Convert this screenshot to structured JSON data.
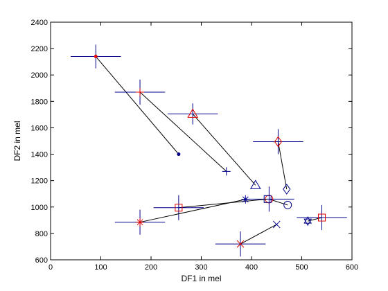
{
  "chart_data": {
    "type": "scatter",
    "title": "",
    "xlabel": "DF1 in mel",
    "ylabel": "DF2 in mel",
    "xlim": [
      0,
      600
    ],
    "ylim": [
      600,
      2400
    ],
    "xticks": [
      0,
      100,
      200,
      300,
      400,
      500,
      600
    ],
    "yticks": [
      600,
      800,
      1000,
      1200,
      1400,
      1600,
      1800,
      2000,
      2200,
      2400
    ],
    "grid": false,
    "legend": "none",
    "colors": {
      "line": "#000000",
      "errorbar": "#00008b",
      "start_marker": "#e00000",
      "end_marker": "#00008b"
    },
    "vectors": [
      {
        "start": {
          "x": 90,
          "y": 2140
        },
        "end": {
          "x": 255,
          "y": 1400
        },
        "start_marker": "dot",
        "end_marker": "dot",
        "err_x": 50,
        "err_y": 90
      },
      {
        "start": {
          "x": 178,
          "y": 1870
        },
        "end": {
          "x": 350,
          "y": 1270
        },
        "start_marker": "plus",
        "end_marker": "plus",
        "err_x": 50,
        "err_y": 95
      },
      {
        "start": {
          "x": 283,
          "y": 1705
        },
        "end": {
          "x": 408,
          "y": 1165
        },
        "start_marker": "triangle",
        "end_marker": "triangle",
        "err_x": 50,
        "err_y": 80
      },
      {
        "start": {
          "x": 453,
          "y": 1495
        },
        "end": {
          "x": 470,
          "y": 1135
        },
        "start_marker": "diamond",
        "end_marker": "diamond",
        "err_x": 50,
        "err_y": 95
      },
      {
        "start": {
          "x": 435,
          "y": 1060
        },
        "end": {
          "x": 472,
          "y": 1015
        },
        "start_marker": "circle",
        "end_marker": "circle",
        "err_x": 50,
        "err_y": 95
      },
      {
        "start": {
          "x": 255,
          "y": 995
        },
        "end": {
          "x": 432,
          "y": 1060
        },
        "start_marker": "square",
        "end_marker": "square",
        "err_x": 50,
        "err_y": 95
      },
      {
        "start": {
          "x": 178,
          "y": 885
        },
        "end": {
          "x": 388,
          "y": 1058
        },
        "start_marker": "star",
        "end_marker": "star",
        "err_x": 50,
        "err_y": 95
      },
      {
        "start": {
          "x": 378,
          "y": 720
        },
        "end": {
          "x": 450,
          "y": 868
        },
        "start_marker": "x",
        "end_marker": "x",
        "err_x": 50,
        "err_y": 95
      },
      {
        "start": {
          "x": 540,
          "y": 920
        },
        "end": {
          "x": 512,
          "y": 893
        },
        "start_marker": "square",
        "end_marker": "hexagram",
        "err_x": 50,
        "err_y": 95
      }
    ]
  }
}
